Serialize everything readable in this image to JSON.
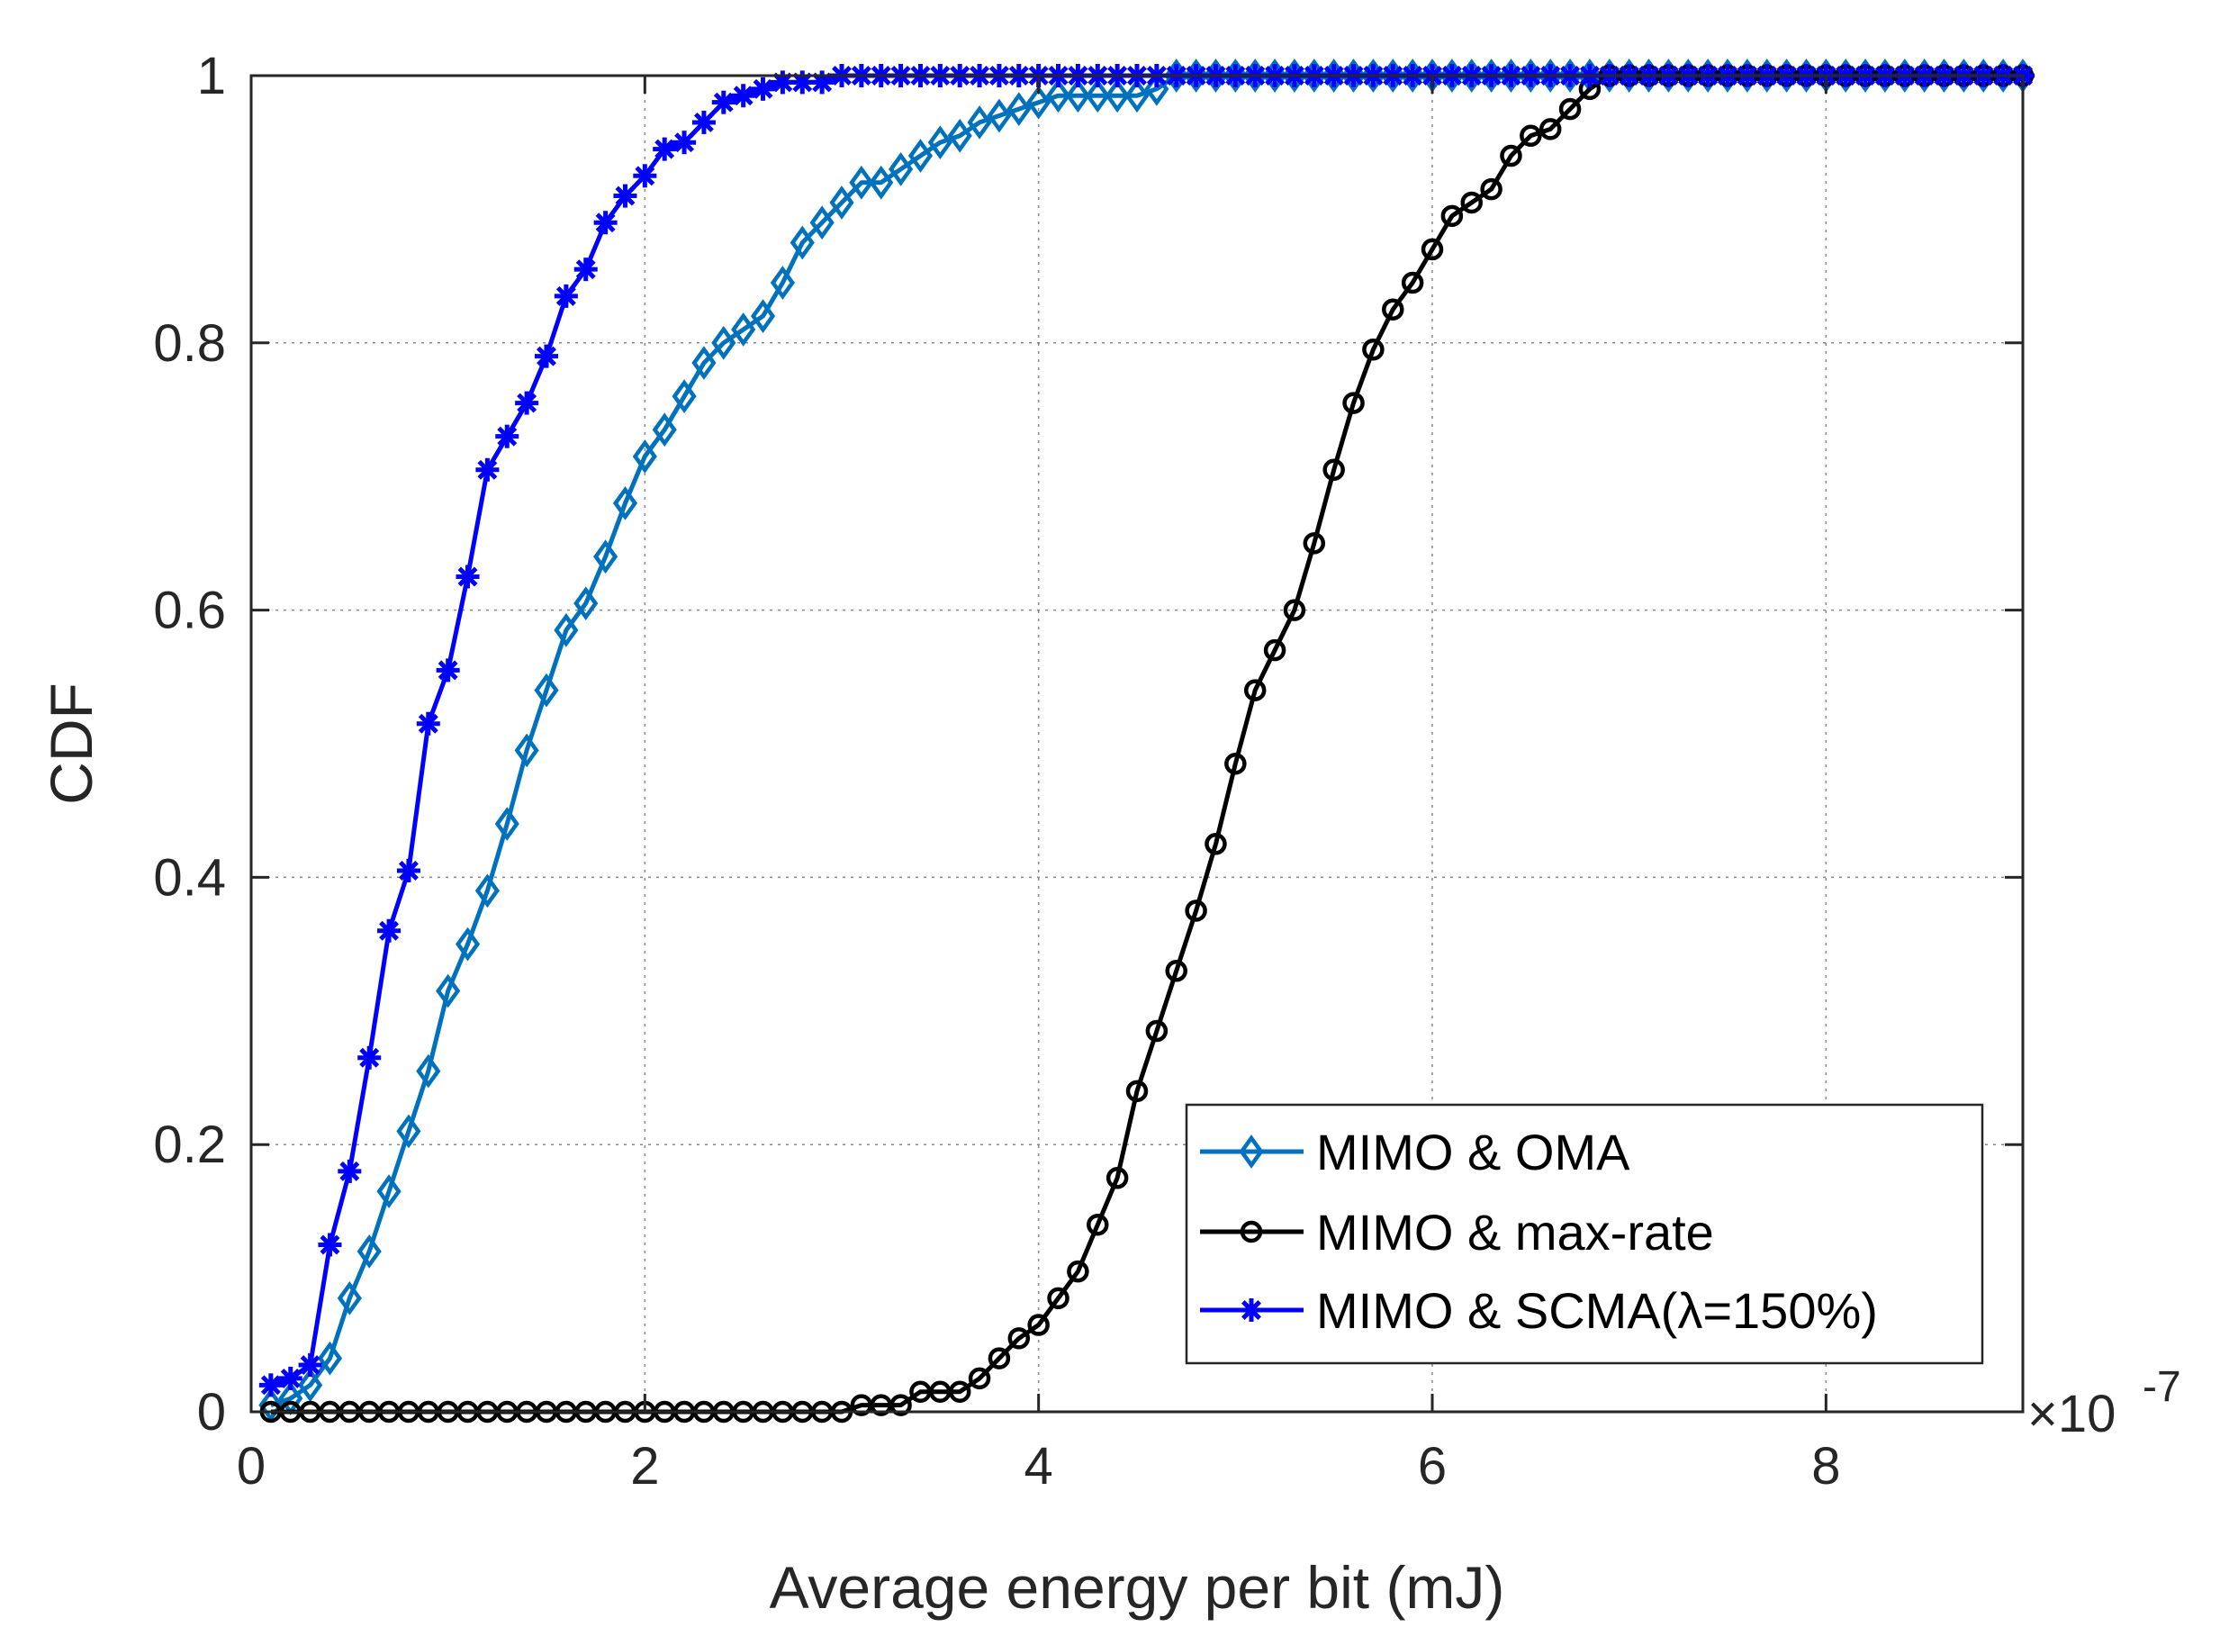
{
  "chart_data": {
    "type": "line",
    "title": "",
    "xlabel": "Average energy  per bit (mJ)",
    "ylabel": "CDF",
    "x_exponent": "×10",
    "x_exponent_power": "-7",
    "xlim": [
      0,
      9
    ],
    "ylim": [
      0,
      1
    ],
    "xticks": [
      "0",
      "2",
      "4",
      "6",
      "8"
    ],
    "xtick_values": [
      0,
      2,
      4,
      6,
      8
    ],
    "yticks": [
      "0",
      "0.2",
      "0.4",
      "0.6",
      "0.8",
      "1"
    ],
    "ytick_values": [
      0,
      0.2,
      0.4,
      0.6,
      0.8,
      1
    ],
    "grid": true,
    "legend_position": "bottom-right",
    "series": [
      {
        "name": "MIMO & OMA",
        "color": "#0072BD",
        "marker": "diamond",
        "x": [
          0.1,
          0.2,
          0.3,
          0.4,
          0.5,
          0.6,
          0.7,
          0.8,
          0.9,
          1.0,
          1.1,
          1.2,
          1.3,
          1.4,
          1.5,
          1.6,
          1.7,
          1.8,
          1.9,
          2.0,
          2.1,
          2.2,
          2.3,
          2.4,
          2.5,
          2.6,
          2.7,
          2.8,
          2.9,
          3.0,
          3.1,
          3.2,
          3.3,
          3.4,
          3.5,
          3.6,
          3.7,
          3.8,
          3.9,
          4.0,
          4.1,
          4.2,
          4.3,
          4.4,
          4.5,
          4.6,
          4.7,
          4.8,
          4.9,
          5.0,
          5.1,
          5.2,
          5.3,
          5.4,
          5.5,
          5.6,
          5.7,
          5.8,
          5.9,
          6.0,
          6.1,
          6.2,
          6.3,
          6.4,
          6.5,
          6.6,
          6.7,
          6.8,
          6.9,
          7.0,
          7.1,
          7.2,
          7.3,
          7.4,
          7.5,
          7.6,
          7.7,
          7.8,
          7.9,
          8.0,
          8.1,
          8.2,
          8.3,
          8.4,
          8.5,
          8.6,
          8.7,
          8.8,
          8.9,
          9.0
        ],
        "y": [
          0.005,
          0.01,
          0.02,
          0.04,
          0.085,
          0.12,
          0.165,
          0.21,
          0.255,
          0.315,
          0.35,
          0.39,
          0.44,
          0.495,
          0.54,
          0.585,
          0.605,
          0.64,
          0.68,
          0.715,
          0.735,
          0.76,
          0.785,
          0.8,
          0.81,
          0.82,
          0.845,
          0.875,
          0.89,
          0.905,
          0.92,
          0.92,
          0.93,
          0.94,
          0.95,
          0.955,
          0.965,
          0.97,
          0.975,
          0.98,
          0.985,
          0.985,
          0.985,
          0.985,
          0.985,
          0.99,
          1,
          1,
          1,
          1,
          1,
          1,
          1,
          1,
          1,
          1,
          1,
          1,
          1,
          1,
          1,
          1,
          1,
          1,
          1,
          1,
          1,
          1,
          1,
          1,
          1,
          1,
          1,
          1,
          1,
          1,
          1,
          1,
          1,
          1,
          1,
          1,
          1,
          1,
          1,
          1,
          1,
          1,
          1,
          1
        ]
      },
      {
        "name": "MIMO & max-rate",
        "color": "#000000",
        "marker": "circle",
        "x": [
          0.1,
          0.2,
          0.3,
          0.4,
          0.5,
          0.6,
          0.7,
          0.8,
          0.9,
          1.0,
          1.1,
          1.2,
          1.3,
          1.4,
          1.5,
          1.6,
          1.7,
          1.8,
          1.9,
          2.0,
          2.1,
          2.2,
          2.3,
          2.4,
          2.5,
          2.6,
          2.7,
          2.8,
          2.9,
          3.0,
          3.1,
          3.2,
          3.3,
          3.4,
          3.5,
          3.6,
          3.7,
          3.8,
          3.9,
          4.0,
          4.1,
          4.2,
          4.3,
          4.4,
          4.5,
          4.6,
          4.7,
          4.8,
          4.9,
          5.0,
          5.1,
          5.2,
          5.3,
          5.4,
          5.5,
          5.6,
          5.7,
          5.8,
          5.9,
          6.0,
          6.1,
          6.2,
          6.3,
          6.4,
          6.5,
          6.6,
          6.7,
          6.8,
          6.9,
          7.0,
          7.1,
          7.2,
          7.3,
          7.4,
          7.5,
          7.6,
          7.7,
          7.8,
          7.9,
          8.0,
          8.1,
          8.2,
          8.3,
          8.4,
          8.5,
          8.6,
          8.7,
          8.8,
          8.9,
          9.0
        ],
        "y": [
          0,
          0,
          0,
          0,
          0,
          0,
          0,
          0,
          0,
          0,
          0,
          0,
          0,
          0,
          0,
          0,
          0,
          0,
          0,
          0,
          0,
          0,
          0,
          0,
          0,
          0,
          0,
          0,
          0,
          0,
          0.005,
          0.005,
          0.005,
          0.015,
          0.015,
          0.015,
          0.025,
          0.04,
          0.055,
          0.065,
          0.085,
          0.105,
          0.14,
          0.175,
          0.24,
          0.285,
          0.33,
          0.375,
          0.425,
          0.485,
          0.54,
          0.57,
          0.6,
          0.65,
          0.705,
          0.755,
          0.795,
          0.825,
          0.845,
          0.87,
          0.895,
          0.905,
          0.915,
          0.94,
          0.955,
          0.96,
          0.975,
          0.99,
          1,
          1,
          1,
          1,
          1,
          1,
          1,
          1,
          1,
          1,
          1,
          1,
          1,
          1,
          1,
          1,
          1,
          1,
          1,
          1,
          1,
          1
        ]
      },
      {
        "name": "MIMO & SCMA(λ=150%)",
        "color": "#0000FF",
        "marker": "asterisk",
        "x": [
          0.1,
          0.2,
          0.3,
          0.4,
          0.5,
          0.6,
          0.7,
          0.8,
          0.9,
          1.0,
          1.1,
          1.2,
          1.3,
          1.4,
          1.5,
          1.6,
          1.7,
          1.8,
          1.9,
          2.0,
          2.1,
          2.2,
          2.3,
          2.4,
          2.5,
          2.6,
          2.7,
          2.8,
          2.9,
          3.0,
          3.1,
          3.2,
          3.3,
          3.4,
          3.5,
          3.6,
          3.7,
          3.8,
          3.9,
          4.0,
          4.1,
          4.2,
          4.3,
          4.4,
          4.5,
          4.6,
          4.7,
          4.8,
          4.9,
          5.0,
          5.1,
          5.2,
          5.3,
          5.4,
          5.5,
          5.6,
          5.7,
          5.8,
          5.9,
          6.0,
          6.1,
          6.2,
          6.3,
          6.4,
          6.5,
          6.6,
          6.7,
          6.8,
          6.9,
          7.0,
          7.1,
          7.2,
          7.3,
          7.4,
          7.5,
          7.6,
          7.7,
          7.8,
          7.9,
          8.0,
          8.1,
          8.2,
          8.3,
          8.4,
          8.5,
          8.6,
          8.7,
          8.8,
          8.9,
          9.0
        ],
        "y": [
          0.02,
          0.025,
          0.035,
          0.125,
          0.18,
          0.265,
          0.36,
          0.405,
          0.515,
          0.555,
          0.625,
          0.705,
          0.73,
          0.755,
          0.79,
          0.835,
          0.855,
          0.89,
          0.91,
          0.925,
          0.945,
          0.95,
          0.965,
          0.98,
          0.985,
          0.99,
          0.995,
          0.995,
          0.995,
          1,
          1,
          1,
          1,
          1,
          1,
          1,
          1,
          1,
          1,
          1,
          1,
          1,
          1,
          1,
          1,
          1,
          1,
          1,
          1,
          1,
          1,
          1,
          1,
          1,
          1,
          1,
          1,
          1,
          1,
          1,
          1,
          1,
          1,
          1,
          1,
          1,
          1,
          1,
          1,
          1,
          1,
          1,
          1,
          1,
          1,
          1,
          1,
          1,
          1,
          1,
          1,
          1,
          1,
          1,
          1,
          1,
          1,
          1,
          1,
          1
        ]
      }
    ]
  }
}
